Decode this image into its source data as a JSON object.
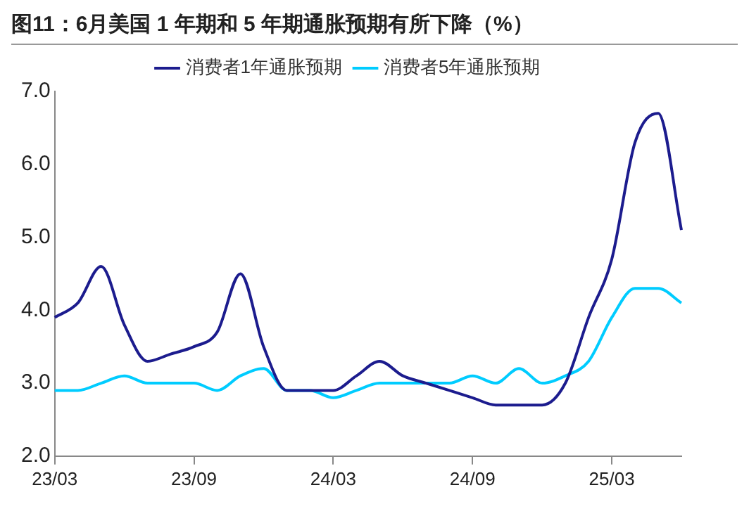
{
  "chart_data": {
    "type": "line",
    "title": "图11：6月美国 1 年期和 5 年期通胀预期有所下降（%）",
    "categories": [
      "23/03",
      null,
      null,
      null,
      null,
      null,
      "23/09",
      null,
      null,
      null,
      null,
      null,
      "24/03",
      null,
      null,
      null,
      null,
      null,
      "24/09",
      null,
      null,
      null,
      null,
      null,
      "25/03",
      null,
      null,
      null
    ],
    "series": [
      {
        "name": "消费者1年通胀预期",
        "color": "#1c1c8e",
        "values": [
          3.9,
          4.1,
          4.6,
          3.8,
          3.3,
          3.4,
          3.5,
          3.7,
          4.5,
          3.5,
          2.9,
          2.9,
          2.9,
          3.1,
          3.3,
          3.1,
          3.0,
          2.9,
          2.8,
          2.7,
          2.7,
          2.7,
          3.0,
          3.9,
          4.7,
          6.3,
          6.7,
          5.1
        ]
      },
      {
        "name": "消费者5年通胀预期",
        "color": "#00ccff",
        "values": [
          2.9,
          2.9,
          3.0,
          3.1,
          3.0,
          3.0,
          3.0,
          2.9,
          3.1,
          3.2,
          2.9,
          2.9,
          2.8,
          2.9,
          3.0,
          3.0,
          3.0,
          3.0,
          3.1,
          3.0,
          3.2,
          3.0,
          3.1,
          3.3,
          3.9,
          4.3,
          4.3,
          4.1
        ]
      }
    ],
    "ylim": [
      2,
      7
    ],
    "yticks": [
      {
        "value": 2,
        "label": "2.0"
      },
      {
        "value": 3,
        "label": "3.0"
      },
      {
        "value": 4,
        "label": "4.0"
      },
      {
        "value": 5,
        "label": "5.0"
      },
      {
        "value": 6,
        "label": "6.0"
      },
      {
        "value": 7,
        "label": "7.0"
      }
    ],
    "grid": false,
    "legend": "top",
    "marker": "none",
    "line_style": "solid"
  }
}
